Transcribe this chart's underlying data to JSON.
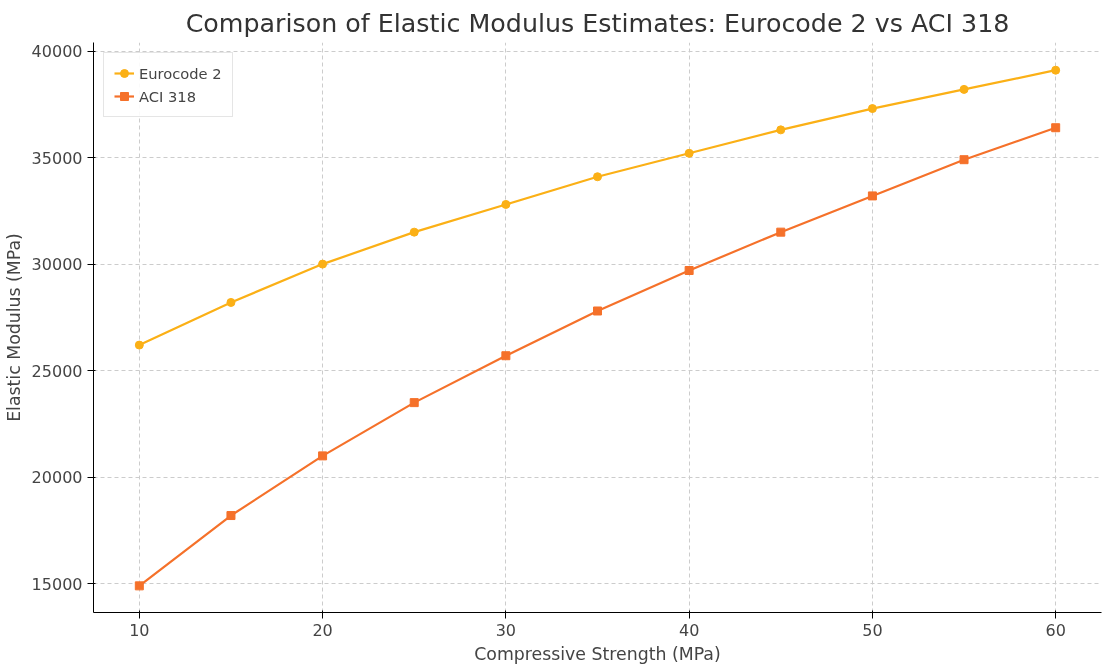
{
  "chart_data": {
    "type": "line",
    "title": "Comparison of Elastic Modulus Estimates: Eurocode 2 vs ACI 318",
    "xlabel": "Compressive Strength (MPa)",
    "ylabel": "Elastic Modulus (MPa)",
    "x": [
      10,
      15,
      20,
      25,
      30,
      35,
      40,
      45,
      50,
      55,
      60
    ],
    "series": [
      {
        "name": "Eurocode 2",
        "color": "#fbb016",
        "marker": "circle",
        "values": [
          26200,
          28200,
          30000,
          31500,
          32800,
          34100,
          35200,
          36300,
          37300,
          38200,
          39100
        ]
      },
      {
        "name": "ACI 318",
        "color": "#f5712a",
        "marker": "square",
        "values": [
          14900,
          18200,
          21000,
          23500,
          25700,
          27800,
          29700,
          31500,
          33200,
          34900,
          36400
        ]
      }
    ],
    "xlim": [
      7.5,
      62.5
    ],
    "ylim": [
      13650,
      40400
    ],
    "xticks": [
      10,
      20,
      30,
      40,
      50,
      60
    ],
    "yticks": [
      15000,
      20000,
      25000,
      30000,
      35000,
      40000
    ],
    "grid": true,
    "legend": "top left",
    "line_style": "solid"
  }
}
